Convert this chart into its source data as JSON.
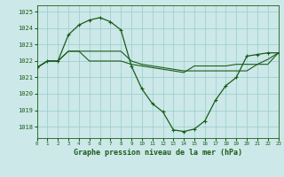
{
  "title": "Graphe pression niveau de la mer (hPa)",
  "bg_color": "#cce8e8",
  "grid_color": "#99cccc",
  "line_color": "#1a5c1a",
  "xlim": [
    0,
    23
  ],
  "ylim": [
    1017.3,
    1025.4
  ],
  "yticks": [
    1018,
    1019,
    1020,
    1021,
    1022,
    1023,
    1024,
    1025
  ],
  "xticks": [
    0,
    1,
    2,
    3,
    4,
    5,
    6,
    7,
    8,
    9,
    10,
    11,
    12,
    13,
    14,
    15,
    16,
    17,
    18,
    19,
    20,
    21,
    22,
    23
  ],
  "series": [
    {
      "y": [
        1021.6,
        1022.0,
        1022.0,
        1022.6,
        1022.6,
        1022.6,
        1022.6,
        1022.6,
        1022.6,
        1022.0,
        1021.8,
        1021.7,
        1021.6,
        1021.5,
        1021.4,
        1021.4,
        1021.4,
        1021.4,
        1021.4,
        1021.4,
        1021.4,
        1021.8,
        1022.1,
        1022.5
      ],
      "marker": false,
      "lw": 0.8
    },
    {
      "y": [
        1021.6,
        1022.0,
        1022.0,
        1023.6,
        1024.2,
        1024.5,
        1024.65,
        1024.4,
        1023.9,
        1021.7,
        1020.3,
        1019.4,
        1018.9,
        1017.8,
        1017.7,
        1017.85,
        1018.35,
        1019.6,
        1020.5,
        1021.0,
        1022.3,
        1022.4,
        1022.5,
        1022.5
      ],
      "marker": true,
      "lw": 0.9
    },
    {
      "y": [
        1021.6,
        1022.0,
        1022.0,
        1022.6,
        1022.6,
        1022.0,
        1022.0,
        1022.0,
        1022.0,
        1021.8,
        1021.7,
        1021.6,
        1021.5,
        1021.4,
        1021.3,
        1021.7,
        1021.7,
        1021.7,
        1021.7,
        1021.8,
        1021.8,
        1021.8,
        1021.8,
        1022.5
      ],
      "marker": false,
      "lw": 0.8
    }
  ]
}
